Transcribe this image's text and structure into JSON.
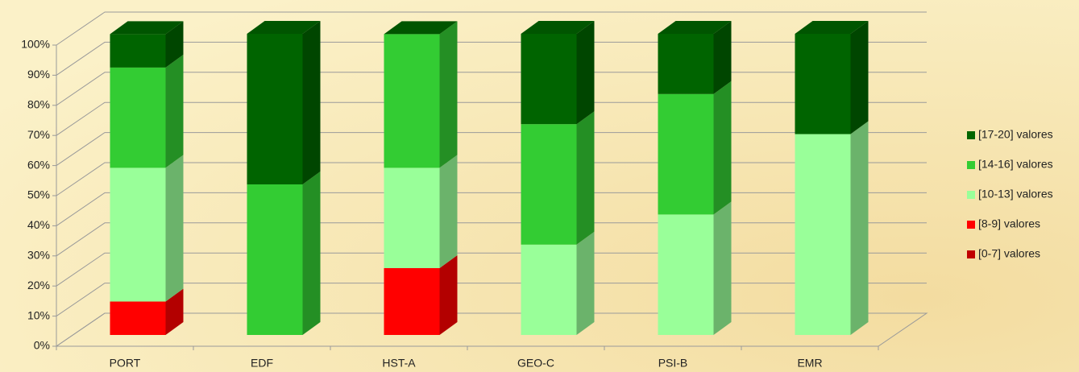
{
  "chart_data": {
    "type": "bar3d_stacked",
    "categories": [
      "PORT",
      "EDF",
      "HST-A",
      "GEO-C",
      "PSI-B",
      "EMR"
    ],
    "series": [
      {
        "name": "[0-7] valores",
        "color": "#c00000",
        "values": [
          0,
          0,
          0,
          0,
          0,
          0
        ]
      },
      {
        "name": "[8-9] valores",
        "color": "#ff0000",
        "values": [
          11.1,
          0,
          22.2,
          0,
          0,
          0
        ]
      },
      {
        "name": "[10-13] valores",
        "color": "#99ff99",
        "values": [
          44.4,
          0,
          33.3,
          30,
          40,
          66.7
        ]
      },
      {
        "name": "[14-16] valores",
        "color": "#33cc33",
        "values": [
          33.3,
          50,
          44.4,
          40,
          40,
          0
        ]
      },
      {
        "name": "[17-20] valores",
        "color": "#006400",
        "values": [
          11.1,
          50,
          0,
          30,
          20,
          33.3
        ]
      }
    ],
    "ylim": [
      0,
      100
    ],
    "yticks": [
      {
        "value": 0,
        "label": "0%"
      },
      {
        "value": 10,
        "label": "10%"
      },
      {
        "value": 20,
        "label": "20%"
      },
      {
        "value": 30,
        "label": "30%"
      },
      {
        "value": 40,
        "label": "40%"
      },
      {
        "value": 50,
        "label": "50%"
      },
      {
        "value": 60,
        "label": "60%"
      },
      {
        "value": 70,
        "label": "70%"
      },
      {
        "value": 80,
        "label": "80%"
      },
      {
        "value": 90,
        "label": "90%"
      },
      {
        "value": 100,
        "label": "100%"
      }
    ],
    "grid": true,
    "legend": "right"
  }
}
